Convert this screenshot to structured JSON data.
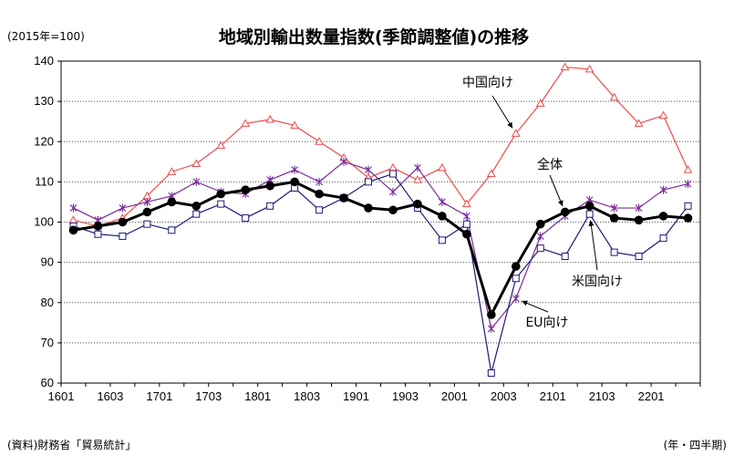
{
  "header": {
    "title": "地域別輸出数量指数(季節調整値)の推移",
    "unit": "(2015年=100)"
  },
  "footer": {
    "source": "(資料)財務省「貿易統計」",
    "period": "(年・四半期)"
  },
  "colors": {
    "total": "#000000",
    "china": "#ef4b4b",
    "us": "#1a1a7a",
    "eu": "#7a2a9a"
  },
  "chart_data": {
    "type": "line",
    "ylim": [
      60,
      140
    ],
    "yticks": [
      60,
      70,
      80,
      90,
      100,
      110,
      120,
      130,
      140
    ],
    "grid": "horizontal dotted",
    "x": [
      "1601",
      "1602",
      "1603",
      "1604",
      "1701",
      "1702",
      "1703",
      "1704",
      "1801",
      "1802",
      "1803",
      "1804",
      "1901",
      "1902",
      "1903",
      "1904",
      "2001",
      "2002",
      "2003",
      "2004",
      "2101",
      "2102",
      "2103",
      "2104",
      "2201",
      "2202"
    ],
    "xtick_labels": [
      "1601",
      "1603",
      "1701",
      "1703",
      "1801",
      "1803",
      "1901",
      "1903",
      "2001",
      "2003",
      "2101",
      "2103",
      "2201"
    ],
    "series": [
      {
        "key": "china",
        "name": "中国向け",
        "marker": "triangle",
        "values": [
          100.5,
          99,
          101,
          106.5,
          112.5,
          114.5,
          119,
          124.5,
          125.5,
          124,
          120,
          116,
          111,
          113.5,
          110.5,
          113.5,
          104.5,
          112,
          122,
          129.5,
          138.5,
          138,
          131,
          124.5,
          126.5,
          113
        ]
      },
      {
        "key": "eu",
        "name": "EU向け",
        "marker": "star",
        "values": [
          103.5,
          100.5,
          103.5,
          105,
          106.5,
          110,
          107.5,
          107,
          110.5,
          113,
          110,
          115,
          113,
          107.5,
          113.5,
          105,
          101.5,
          73.5,
          81,
          96.5,
          101.5,
          105.5,
          103.5,
          103.5,
          108,
          109.5
        ]
      },
      {
        "key": "us",
        "name": "米国向け",
        "marker": "square",
        "values": [
          99,
          97,
          96.5,
          99.5,
          98,
          102,
          104.5,
          101,
          104,
          108.5,
          103,
          106,
          110,
          112,
          103.5,
          95.5,
          99.5,
          62.5,
          86,
          93.5,
          91.5,
          102,
          92.5,
          91.5,
          96,
          104
        ]
      },
      {
        "key": "total",
        "name": "全体",
        "marker": "circle",
        "values": [
          98,
          99,
          100,
          102.5,
          105,
          104,
          107,
          108,
          109,
          110,
          107,
          106,
          103.5,
          103,
          104.5,
          101.5,
          97,
          77,
          89,
          99.5,
          102.5,
          104,
          101,
          100.5,
          101.5,
          101
        ]
      }
    ],
    "annotations": [
      {
        "series": "china",
        "text": "中国向け"
      },
      {
        "series": "total",
        "text": "全体"
      },
      {
        "series": "us",
        "text": "米国向け"
      },
      {
        "series": "eu",
        "text": "EU向け"
      }
    ]
  }
}
